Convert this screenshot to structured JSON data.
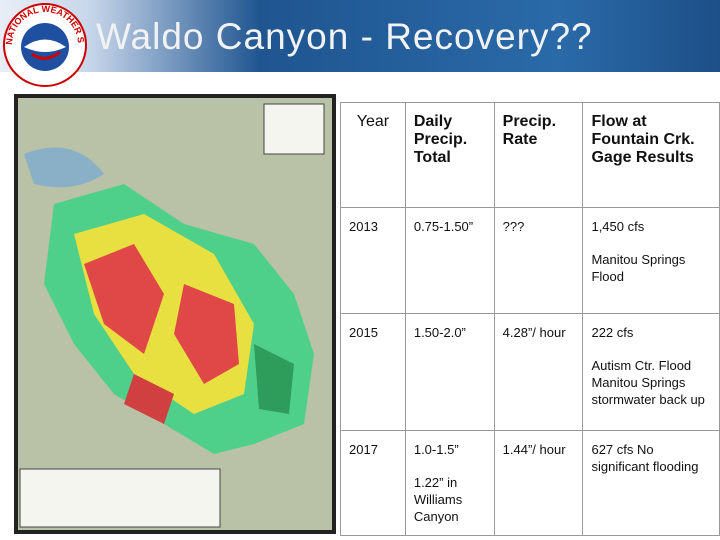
{
  "header": {
    "title": "Waldo Canyon - Recovery??",
    "logo_text": "NATIONAL WEATHER SERVICE"
  },
  "table": {
    "columns": [
      "Year",
      "Daily Precip. Total",
      "Precip. Rate",
      "Flow at Fountain Crk. Gage Results"
    ],
    "rows": [
      [
        [
          "2013"
        ],
        [
          "0.75-1.50”"
        ],
        [
          "???"
        ],
        [
          "1,450 cfs",
          "Manitou Springs Flood"
        ]
      ],
      [
        [
          "2015"
        ],
        [
          "1.50-2.0”"
        ],
        [
          "4.28”/ hour"
        ],
        [
          "222 cfs",
          "Autism Ctr. Flood Manitou Springs stormwater back up"
        ]
      ],
      [
        [
          "2017"
        ],
        [
          "1.0-1.5”",
          "1.22” in Williams Canyon"
        ],
        [
          "1.44”/ hour"
        ],
        [
          "627 cfs No significant flooding"
        ]
      ]
    ]
  }
}
